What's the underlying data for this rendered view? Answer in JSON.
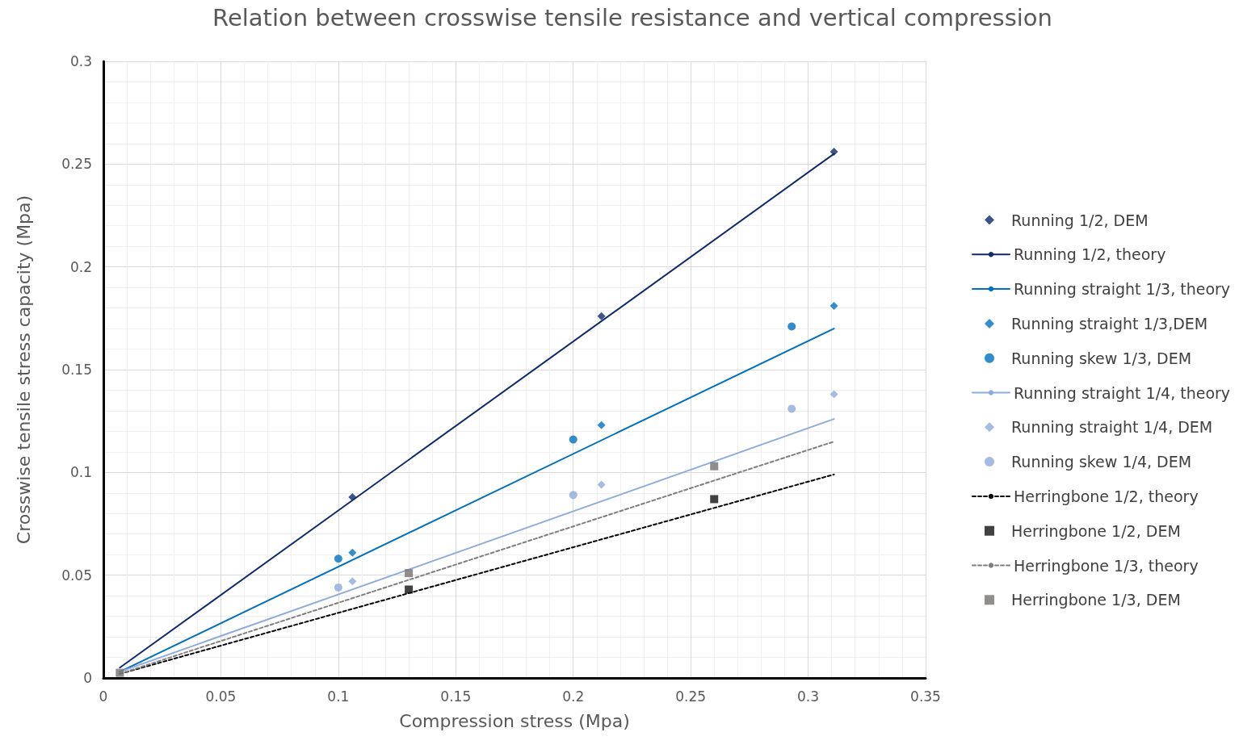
{
  "chart_data": {
    "type": "scatter",
    "title": "Relation between crosswise tensile resistance and vertical compression",
    "xlabel": "Compression stress (Mpa)",
    "ylabel": "Crosswise tensile stress capacity (Mpa)",
    "xlim": [
      0,
      0.35
    ],
    "xticks": [
      0,
      0.05,
      0.1,
      0.15,
      0.2,
      0.25,
      0.3,
      0.35
    ],
    "ylim": [
      0,
      0.3
    ],
    "yticks": [
      0,
      0.05,
      0.1,
      0.15,
      0.2,
      0.25,
      0.3
    ],
    "grid": true,
    "legend": "right",
    "series": [
      {
        "name": "Running 1/2, DEM",
        "marker": "diamond",
        "color": "#0e2a6b",
        "x": [
          0.106,
          0.212,
          0.311
        ],
        "values": [
          0.088,
          0.176,
          0.256
        ]
      },
      {
        "name": "Running 1/2, theory",
        "type": "line",
        "marker": "none",
        "line_style": "solid",
        "color": "#0e2a6b",
        "x": [
          0.007,
          0.311
        ],
        "values": [
          0.005,
          0.255
        ]
      },
      {
        "name": "Running straight 1/3, theory",
        "type": "line",
        "marker": "none",
        "line_style": "solid",
        "color": "#0070c0",
        "x": [
          0.007,
          0.311
        ],
        "values": [
          0.003,
          0.17
        ]
      },
      {
        "name": "Running straight 1/3,DEM",
        "marker": "diamond",
        "color": "#0070c0",
        "x": [
          0.106,
          0.212,
          0.311
        ],
        "values": [
          0.061,
          0.123,
          0.181
        ]
      },
      {
        "name": "Running skew 1/3, DEM",
        "marker": "circle",
        "color": "#0070c0",
        "x": [
          0.1,
          0.2,
          0.293
        ],
        "values": [
          0.058,
          0.116,
          0.171
        ]
      },
      {
        "name": "Running straight 1/4, theory",
        "type": "line",
        "marker": "none",
        "line_style": "solid",
        "color": "#8faadc",
        "x": [
          0.007,
          0.311
        ],
        "values": [
          0.003,
          0.126
        ]
      },
      {
        "name": "Running straight 1/4, DEM",
        "marker": "diamond",
        "color": "#8faadc",
        "x": [
          0.106,
          0.212,
          0.311
        ],
        "values": [
          0.047,
          0.094,
          0.138
        ]
      },
      {
        "name": "Running skew 1/4, DEM",
        "marker": "circle",
        "color": "#8faadc",
        "x": [
          0.1,
          0.2,
          0.293
        ],
        "values": [
          0.044,
          0.089,
          0.131
        ]
      },
      {
        "name": "Herringbone 1/2, theory",
        "type": "line",
        "marker": "none",
        "line_style": "dashed",
        "color": "#000000",
        "x": [
          0.007,
          0.311
        ],
        "values": [
          0.002,
          0.099
        ]
      },
      {
        "name": "Herringbone 1/2, DEM",
        "marker": "square",
        "color": "#111111",
        "x": [
          0.13,
          0.26
        ],
        "values": [
          0.043,
          0.087
        ]
      },
      {
        "name": "Herringbone 1/3, theory",
        "type": "line",
        "marker": "none",
        "line_style": "dashed",
        "color": "#7f7f7f",
        "x": [
          0.007,
          0.311
        ],
        "values": [
          0.002,
          0.115
        ]
      },
      {
        "name": "Herringbone 1/3, DEM",
        "marker": "square",
        "color": "#767171",
        "x": [
          0.007,
          0.13,
          0.26
        ],
        "values": [
          0.0025,
          0.051,
          0.103
        ]
      }
    ]
  }
}
